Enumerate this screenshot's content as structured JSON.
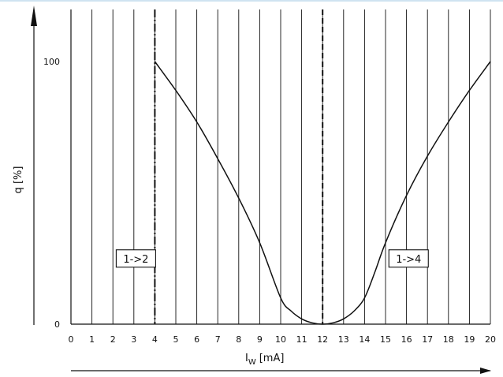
{
  "chart_data": {
    "type": "line",
    "title": "",
    "xlabel": "I",
    "xlabel_sub": "W",
    "xlabel_unit": "[mA]",
    "ylabel": "q [%]",
    "xlim": [
      0,
      20
    ],
    "ylim": [
      0,
      125
    ],
    "x_ticks": [
      "0",
      "1",
      "2",
      "3",
      "4",
      "5",
      "6",
      "7",
      "8",
      "9",
      "10",
      "11",
      "12",
      "13",
      "14",
      "15",
      "16",
      "17",
      "18",
      "19",
      "20"
    ],
    "y_ticks": [
      {
        "value": 0,
        "label": "0"
      },
      {
        "value": 100,
        "label": "100"
      }
    ],
    "grid": "vertical",
    "series": [
      {
        "x": [
          4,
          5,
          6,
          7,
          8,
          9,
          10,
          10.5,
          11,
          11.5,
          12,
          12.5,
          13,
          13.5,
          14,
          14.5,
          15,
          16,
          17,
          18,
          19,
          20
        ],
        "y": [
          100,
          89,
          77,
          63,
          48,
          31,
          10,
          5,
          2,
          0.5,
          0,
          0.5,
          2,
          5,
          10,
          20,
          31,
          49,
          64,
          77,
          89,
          100
        ]
      }
    ],
    "markers": [
      {
        "x": 4,
        "style": "dash-dot",
        "label": "1->2",
        "label_x": 4,
        "label_y": 25,
        "label_side": "left"
      },
      {
        "x": 12,
        "style": "dashed",
        "label": "",
        "label_side": "none"
      }
    ],
    "annotations": [
      {
        "text": "1->4",
        "x": 16.1,
        "y": 25
      }
    ]
  }
}
